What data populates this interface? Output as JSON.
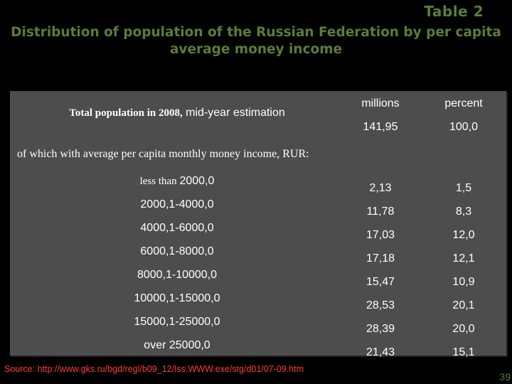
{
  "table_label": "Table  2",
  "title_line1": "Distribution of population of the Russian Federation by per capita",
  "title_line2": "average money income",
  "columns": {
    "col1": "millions",
    "col2": "percent"
  },
  "total": {
    "label_serif": "Total population in 2008,",
    "label_sans": " mid-year estimation",
    "millions": "141,95",
    "percent": "100,0"
  },
  "of_which": "of which with average per capita monthly money income, RUR:",
  "rows": [
    {
      "label_serif": "less than ",
      "label": "2000,0",
      "millions": "2,13",
      "percent": "1,5"
    },
    {
      "label_serif": "",
      "label": "2000,1-4000,0",
      "millions": "11,78",
      "percent": "8,3"
    },
    {
      "label_serif": "",
      "label": "4000,1-6000,0",
      "millions": "17,03",
      "percent": "12,0"
    },
    {
      "label_serif": "",
      "label": "6000,1-8000,0",
      "millions": "17,18",
      "percent": "12,1"
    },
    {
      "label_serif": "",
      "label": "8000,1-10000,0",
      "millions": "15,47",
      "percent": "10,9"
    },
    {
      "label_serif": "",
      "label": "10000,1-15000,0",
      "millions": "28,53",
      "percent": "20,1"
    },
    {
      "label_serif": "",
      "label": "15000,1-25000,0",
      "millions": "28,39",
      "percent": "20,0"
    },
    {
      "label_serif": "",
      "label": "over 25000,0",
      "millions": "21,43",
      "percent": "15,1"
    }
  ],
  "source": {
    "label": "Source:",
    "url": "http://www.gks.ru/bgd/regl/b09_12/Iss.WWW.exe/stg/d01/07-09.htm"
  },
  "page_number": "39"
}
